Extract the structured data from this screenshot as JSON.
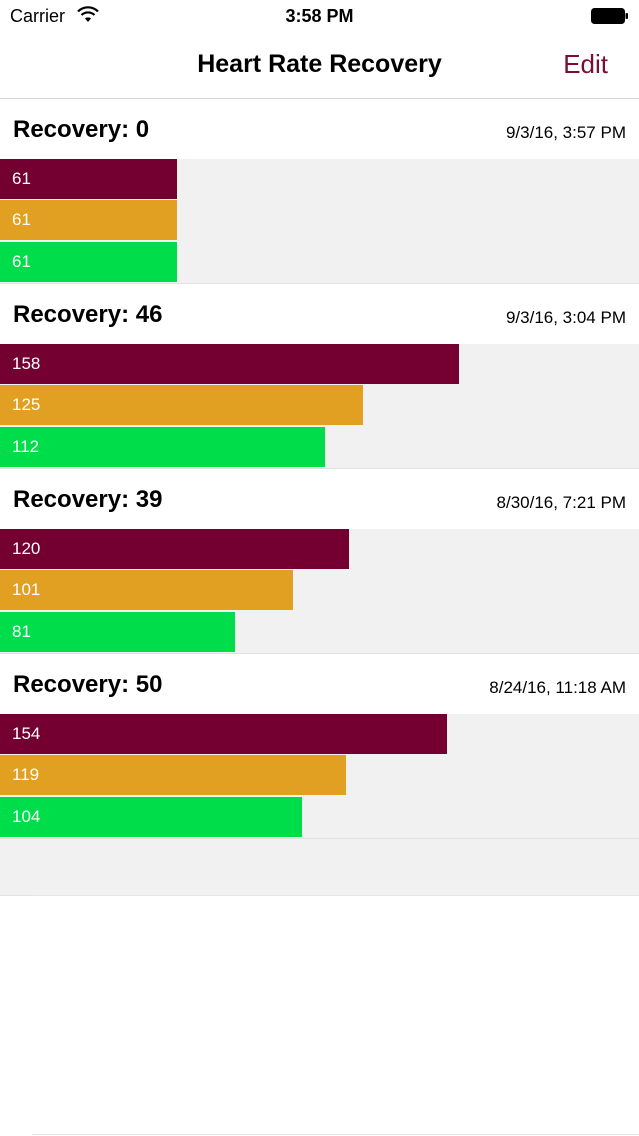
{
  "status_bar": {
    "carrier": "Carrier",
    "time": "3:58 PM",
    "wifi_icon": "wifi-icon",
    "battery_icon": "battery-icon"
  },
  "nav": {
    "title": "Heart Rate Recovery",
    "edit_label": "Edit",
    "accent_color": "#7a0f33"
  },
  "colors": {
    "bar_peak": "#730030",
    "bar_mid": "#e1a021",
    "bar_low": "#00dd4a",
    "bars_background": "#f1f1f1"
  },
  "scale_max": 220,
  "records": [
    {
      "title": "Recovery: 0",
      "date": "9/3/16, 3:57 PM",
      "values": [
        61,
        61,
        61
      ]
    },
    {
      "title": "Recovery: 46",
      "date": "9/3/16, 3:04 PM",
      "values": [
        158,
        125,
        112
      ]
    },
    {
      "title": "Recovery: 39",
      "date": "8/30/16, 7:21 PM",
      "values": [
        120,
        101,
        81
      ]
    },
    {
      "title": "Recovery: 50",
      "date": "8/24/16, 11:18 AM",
      "values": [
        154,
        119,
        104
      ]
    }
  ]
}
